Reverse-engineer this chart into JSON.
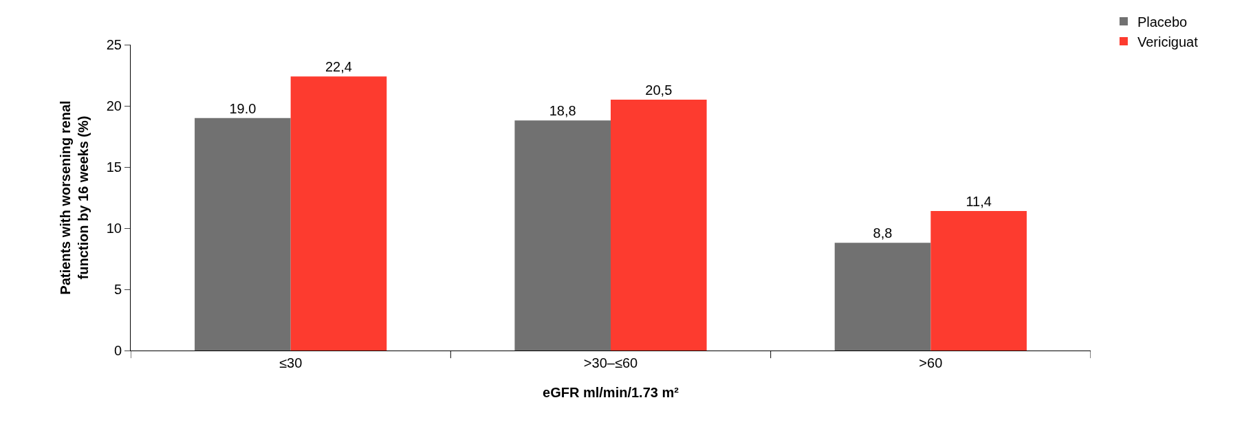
{
  "chart_data": {
    "type": "bar",
    "xlabel": "eGFR ml/min/1.73 m²",
    "ylabel": "Patients with worsening renal function by 16 weeks (%)",
    "categories": [
      "≤30",
      ">30–≤60",
      ">60"
    ],
    "series": [
      {
        "name": "Placebo",
        "color": "#717171",
        "values": [
          19.0,
          18.8,
          8.8
        ],
        "value_labels": [
          "19.0",
          "18,8",
          "8,8"
        ]
      },
      {
        "name": "Vericiguat",
        "color": "#fd3b2f",
        "values": [
          22.4,
          20.5,
          11.4
        ],
        "value_labels": [
          "22,4",
          "20,5",
          "11,4"
        ]
      }
    ],
    "ylim": [
      0,
      25
    ],
    "yticks": [
      0,
      5,
      10,
      15,
      20,
      25
    ],
    "grid": false,
    "legend": "top right"
  }
}
